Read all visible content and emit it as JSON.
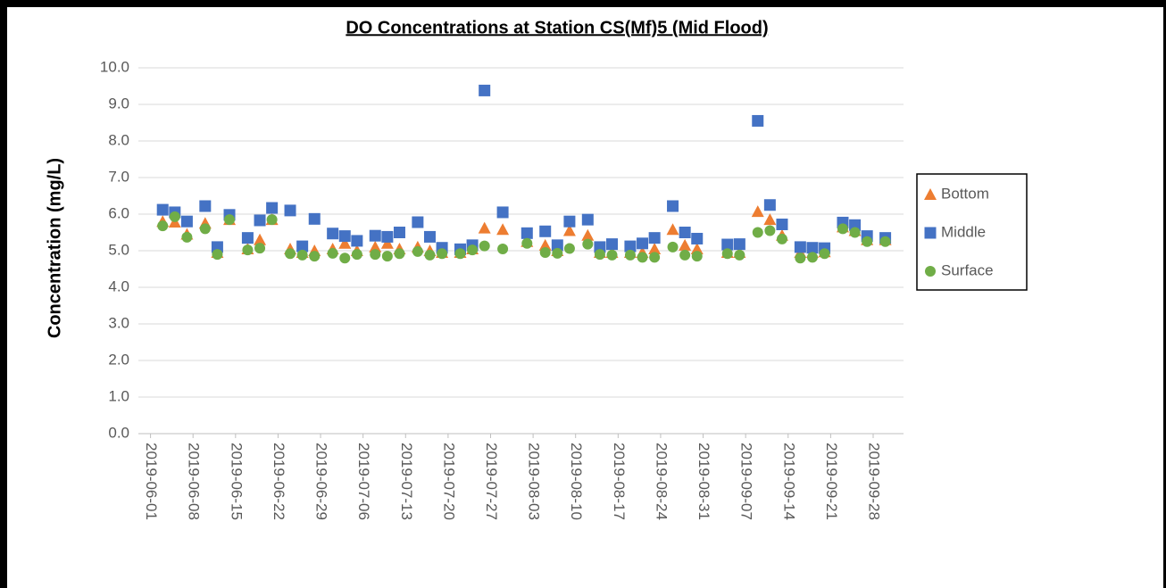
{
  "chart_data": {
    "type": "scatter",
    "title": "DO Concentrations at Station CS(Mf)5 (Mid Flood)",
    "y_label": "Concentration (mg/L)",
    "x": [
      "2019-06-03",
      "2019-06-05",
      "2019-06-07",
      "2019-06-10",
      "2019-06-12",
      "2019-06-14",
      "2019-06-17",
      "2019-06-19",
      "2019-06-21",
      "2019-06-24",
      "2019-06-26",
      "2019-06-28",
      "2019-07-01",
      "2019-07-03",
      "2019-07-05",
      "2019-07-08",
      "2019-07-10",
      "2019-07-12",
      "2019-07-15",
      "2019-07-17",
      "2019-07-19",
      "2019-07-22",
      "2019-07-24",
      "2019-07-26",
      "2019-07-29",
      "2019-08-02",
      "2019-08-05",
      "2019-08-07",
      "2019-08-09",
      "2019-08-12",
      "2019-08-14",
      "2019-08-16",
      "2019-08-19",
      "2019-08-21",
      "2019-08-23",
      "2019-08-26",
      "2019-08-28",
      "2019-08-30",
      "2019-09-04",
      "2019-09-06",
      "2019-09-09",
      "2019-09-11",
      "2019-09-13",
      "2019-09-16",
      "2019-09-18",
      "2019-09-20",
      "2019-09-23",
      "2019-09-25",
      "2019-09-27",
      "2019-09-30"
    ],
    "series": [
      {
        "name": "Bottom",
        "color": "#ED7D31",
        "marker": "triangle",
        "values": [
          5.8,
          5.78,
          5.45,
          5.75,
          4.95,
          5.85,
          5.05,
          5.3,
          5.85,
          5.05,
          4.95,
          5.0,
          5.05,
          5.2,
          5.0,
          5.1,
          5.2,
          5.05,
          5.1,
          5.0,
          4.95,
          4.95,
          5.05,
          5.62,
          5.58,
          5.25,
          5.15,
          5.0,
          5.55,
          5.42,
          4.95,
          4.95,
          4.95,
          4.95,
          5.05,
          5.58,
          5.15,
          5.05,
          4.95,
          4.95,
          6.07,
          5.85,
          5.42,
          4.95,
          4.95,
          4.97,
          5.65,
          5.55,
          5.3,
          5.3
        ]
      },
      {
        "name": "Middle",
        "color": "#4472C4",
        "marker": "square",
        "values": [
          6.12,
          6.05,
          5.8,
          6.22,
          5.1,
          5.98,
          5.35,
          5.83,
          6.17,
          6.1,
          5.12,
          5.87,
          5.47,
          5.4,
          5.27,
          5.41,
          5.38,
          5.5,
          5.78,
          5.38,
          5.08,
          5.04,
          5.15,
          9.38,
          6.05,
          5.48,
          5.53,
          5.15,
          5.8,
          5.85,
          5.1,
          5.18,
          5.12,
          5.2,
          5.35,
          6.22,
          5.5,
          5.33,
          5.17,
          5.18,
          8.55,
          6.25,
          5.72,
          5.1,
          5.08,
          5.07,
          5.77,
          5.7,
          5.4,
          5.35
        ]
      },
      {
        "name": "Surface",
        "color": "#70AD47",
        "marker": "circle",
        "values": [
          5.68,
          5.93,
          5.37,
          5.6,
          4.9,
          5.85,
          5.02,
          5.07,
          5.85,
          4.92,
          4.88,
          4.85,
          4.93,
          4.8,
          4.9,
          4.9,
          4.85,
          4.92,
          4.98,
          4.88,
          4.92,
          4.92,
          5.02,
          5.13,
          5.05,
          5.2,
          4.95,
          4.93,
          5.06,
          5.18,
          4.9,
          4.88,
          4.88,
          4.82,
          4.82,
          5.1,
          4.88,
          4.85,
          4.92,
          4.88,
          5.5,
          5.55,
          5.32,
          4.8,
          4.82,
          4.92,
          5.6,
          5.5,
          5.25,
          5.25
        ]
      }
    ],
    "xlim": [
      "2019-05-30",
      "2019-10-03"
    ],
    "xticks": [
      "2019-06-01",
      "2019-06-08",
      "2019-06-15",
      "2019-06-22",
      "2019-06-29",
      "2019-07-06",
      "2019-07-13",
      "2019-07-20",
      "2019-07-27",
      "2019-08-03",
      "2019-08-10",
      "2019-08-17",
      "2019-08-24",
      "2019-08-31",
      "2019-09-07",
      "2019-09-14",
      "2019-09-21",
      "2019-09-28"
    ],
    "ylim": [
      0,
      10
    ],
    "yticks": [
      {
        "value": 0,
        "label": "0.0"
      },
      {
        "value": 1,
        "label": "1.0"
      },
      {
        "value": 2,
        "label": "2.0"
      },
      {
        "value": 3,
        "label": "3.0"
      },
      {
        "value": 4,
        "label": "4.0"
      },
      {
        "value": 5,
        "label": "5.0"
      },
      {
        "value": 6,
        "label": "6.0"
      },
      {
        "value": 7,
        "label": "7.0"
      },
      {
        "value": 8,
        "label": "8.0"
      },
      {
        "value": 9,
        "label": "9.0"
      },
      {
        "value": 10,
        "label": "10.0"
      }
    ],
    "grid": true,
    "legend": "right"
  }
}
